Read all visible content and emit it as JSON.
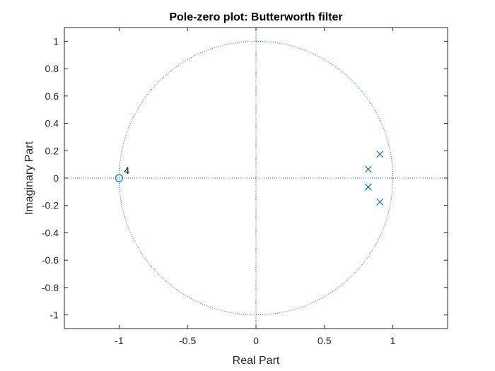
{
  "chart_data": {
    "type": "scatter",
    "title": "Pole-zero plot: Butterworth filter",
    "xlabel": "Real Part",
    "ylabel": "Imaginary Part",
    "xlim": [
      -1.4,
      1.4
    ],
    "ylim": [
      -1.1,
      1.1
    ],
    "xticks": [
      -1,
      -0.5,
      0,
      0.5,
      1
    ],
    "xtick_labels": [
      "-1",
      "-0.5",
      "0",
      "0.5",
      "1"
    ],
    "yticks": [
      1,
      0.8,
      0.6,
      0.4,
      0.2,
      0,
      -0.2,
      -0.4,
      -0.6,
      -0.8,
      -1
    ],
    "ytick_labels": [
      "1",
      "0.8",
      "0.6",
      "0.4",
      "0.2",
      "0",
      "-0.2",
      "-0.4",
      "-0.6",
      "-0.8",
      "-1"
    ],
    "grid": false,
    "unit_circle": true,
    "color": "#0072BD",
    "zeros": [
      {
        "x": -1,
        "y": 0,
        "multiplicity": 4
      }
    ],
    "zero_multiplicity_label": "4",
    "poles": [
      {
        "x": 0.905,
        "y": 0.175
      },
      {
        "x": 0.82,
        "y": 0.065
      },
      {
        "x": 0.82,
        "y": -0.065
      },
      {
        "x": 0.905,
        "y": -0.175
      }
    ]
  }
}
